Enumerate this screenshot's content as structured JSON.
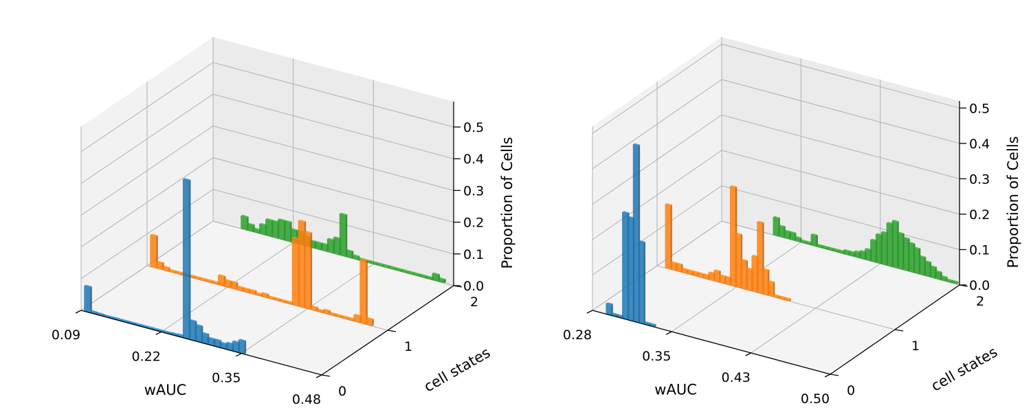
{
  "colors": {
    "state0": "#1f77b4",
    "state1": "#ff7f0e",
    "state2": "#2ca02c"
  },
  "chart_data": [
    {
      "type": "bar3d",
      "xlabel": "wAUC",
      "ylabel": "cell states",
      "zlabel": "Proportion of Cells",
      "xticks": [
        "0.09",
        "0.22",
        "0.35",
        "0.48"
      ],
      "yticks": [
        "0",
        "1",
        "2"
      ],
      "zticks": [
        "0.0",
        "0.1",
        "0.2",
        "0.3",
        "0.4",
        "0.5"
      ],
      "xlim": [
        0.09,
        0.48
      ],
      "zlim": [
        0,
        0.58
      ],
      "series": [
        {
          "state": 0,
          "x": [
            0.1,
            0.11,
            0.12,
            0.13,
            0.14,
            0.15,
            0.16,
            0.17,
            0.18,
            0.19,
            0.2,
            0.21,
            0.22,
            0.23,
            0.24,
            0.25,
            0.26,
            0.27,
            0.28,
            0.29,
            0.3,
            0.31,
            0.32,
            0.33,
            0.34,
            0.35
          ],
          "values": [
            0.08,
            0.005,
            0.004,
            0.003,
            0.003,
            0.003,
            0.003,
            0.003,
            0.003,
            0.003,
            0.003,
            0.003,
            0.003,
            0.003,
            0.004,
            0.005,
            0.5,
            0.06,
            0.05,
            0.03,
            0.02,
            0.02,
            0.015,
            0.02,
            0.03,
            0.04
          ]
        },
        {
          "state": 1,
          "x": [
            0.1,
            0.11,
            0.12,
            0.13,
            0.14,
            0.15,
            0.16,
            0.17,
            0.18,
            0.19,
            0.2,
            0.21,
            0.22,
            0.23,
            0.24,
            0.25,
            0.26,
            0.27,
            0.28,
            0.29,
            0.3,
            0.31,
            0.32,
            0.33,
            0.34,
            0.35,
            0.36,
            0.37,
            0.38,
            0.39,
            0.4,
            0.41,
            0.42,
            0.43,
            0.44,
            0.45
          ],
          "values": [
            0.1,
            0.02,
            0.01,
            0.005,
            0.005,
            0.005,
            0.005,
            0.005,
            0.005,
            0.005,
            0.005,
            0.03,
            0.02,
            0.02,
            0.01,
            0.01,
            0.01,
            0.005,
            0.01,
            0.005,
            0.005,
            0.005,
            0.005,
            0.21,
            0.27,
            0.24,
            0.01,
            0.005,
            0.01,
            0.005,
            0.005,
            0.005,
            0.005,
            0.02,
            0.2,
            0.02
          ]
        },
        {
          "state": 2,
          "x": [
            0.14,
            0.15,
            0.16,
            0.17,
            0.18,
            0.19,
            0.2,
            0.21,
            0.22,
            0.23,
            0.24,
            0.25,
            0.26,
            0.27,
            0.28,
            0.29,
            0.3,
            0.31,
            0.32,
            0.33,
            0.34,
            0.35,
            0.36,
            0.37,
            0.38,
            0.39,
            0.4,
            0.41,
            0.42,
            0.43,
            0.44,
            0.45,
            0.46
          ],
          "values": [
            0.04,
            0.02,
            0.01,
            0.03,
            0.05,
            0.05,
            0.06,
            0.06,
            0.04,
            0.04,
            0.03,
            0.02,
            0.02,
            0.02,
            0.04,
            0.05,
            0.13,
            0.02,
            0.01,
            0.005,
            0.005,
            0.005,
            0.005,
            0.005,
            0.005,
            0.005,
            0.005,
            0.005,
            0.005,
            0.005,
            0.005,
            0.02,
            0.01
          ]
        }
      ]
    },
    {
      "type": "bar3d",
      "xlabel": "wAUC",
      "ylabel": "cell states",
      "zlabel": "Proportion of Cells",
      "xticks": [
        "0.28",
        "0.35",
        "0.43",
        "0.50"
      ],
      "yticks": [
        "0",
        "1",
        "2"
      ],
      "zticks": [
        "0.0",
        "0.1",
        "0.2",
        "0.3",
        "0.4",
        "0.5"
      ],
      "xlim": [
        0.28,
        0.5
      ],
      "zlim": [
        0,
        0.52
      ],
      "series": [
        {
          "state": 0,
          "x": [
            0.295,
            0.3,
            0.305,
            0.31,
            0.315,
            0.32,
            0.325,
            0.33,
            0.335
          ],
          "values": [
            0.03,
            0.005,
            0.005,
            0.3,
            0.29,
            0.5,
            0.23,
            0.005,
            0.005
          ]
        },
        {
          "state": 1,
          "x": [
            0.29,
            0.295,
            0.3,
            0.305,
            0.31,
            0.315,
            0.32,
            0.325,
            0.33,
            0.335,
            0.34,
            0.345,
            0.35,
            0.355,
            0.36,
            0.365,
            0.37,
            0.375,
            0.38,
            0.385,
            0.39,
            0.395,
            0.4
          ],
          "values": [
            0.18,
            0.02,
            0.02,
            0.01,
            0.01,
            0.01,
            0.01,
            0.01,
            0.02,
            0.03,
            0.02,
            0.02,
            0.28,
            0.15,
            0.08,
            0.06,
            0.1,
            0.2,
            0.07,
            0.04,
            0.005,
            0.005,
            0.005
          ]
        },
        {
          "state": 2,
          "x": [
            0.33,
            0.335,
            0.34,
            0.345,
            0.35,
            0.355,
            0.36,
            0.365,
            0.37,
            0.375,
            0.38,
            0.385,
            0.39,
            0.395,
            0.4,
            0.405,
            0.41,
            0.415,
            0.42,
            0.425,
            0.43,
            0.435,
            0.44,
            0.445,
            0.45,
            0.455,
            0.46,
            0.465,
            0.47,
            0.475,
            0.48,
            0.485,
            0.49,
            0.495
          ],
          "values": [
            0.05,
            0.03,
            0.02,
            0.02,
            0.01,
            0.005,
            0.005,
            0.03,
            0.005,
            0.005,
            0.005,
            0.005,
            0.005,
            0.01,
            0.01,
            0.015,
            0.02,
            0.03,
            0.06,
            0.08,
            0.09,
            0.12,
            0.13,
            0.1,
            0.09,
            0.08,
            0.07,
            0.05,
            0.04,
            0.03,
            0.02,
            0.01,
            0.005,
            0.005
          ]
        }
      ]
    }
  ]
}
